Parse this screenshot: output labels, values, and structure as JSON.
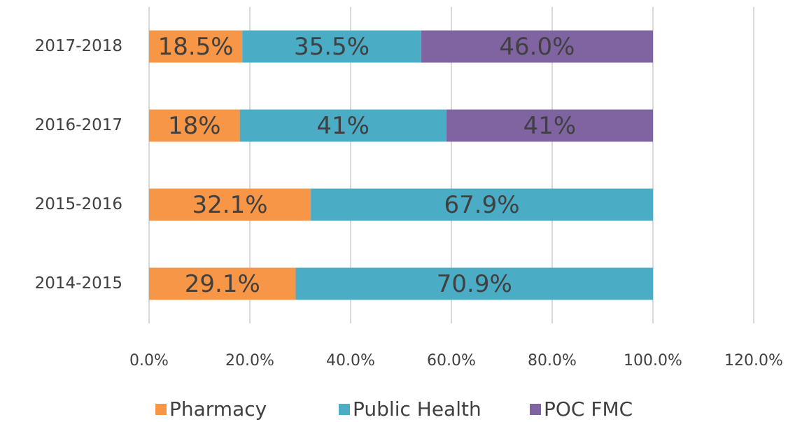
{
  "chart_data": {
    "type": "stacked-barh",
    "categories": [
      "2017-2018",
      "2016-2017",
      "2015-2016",
      "2014-2015"
    ],
    "series": [
      {
        "name": "Pharmacy",
        "color": "#f79646",
        "values": [
          18.5,
          18,
          32.1,
          29.1
        ],
        "value_labels": [
          "18.5%",
          "18%",
          "32.1%",
          "29.1%"
        ]
      },
      {
        "name": "Public Health",
        "color": "#4bacc6",
        "values": [
          35.5,
          41,
          67.9,
          70.9
        ],
        "value_labels": [
          "35.5%",
          "41%",
          "67.9%",
          "70.9%"
        ]
      },
      {
        "name": "POC FMC",
        "color": "#8064a2",
        "values": [
          46.0,
          41,
          null,
          null
        ],
        "value_labels": [
          "46.0%",
          "41%",
          null,
          null
        ]
      }
    ],
    "xlim": [
      0,
      120
    ],
    "xticks": [
      {
        "value": 0,
        "label": "0.0%"
      },
      {
        "value": 20,
        "label": "20.0%"
      },
      {
        "value": 40,
        "label": "40.0%"
      },
      {
        "value": 60,
        "label": "60.0%"
      },
      {
        "value": 80,
        "label": "80.0%"
      },
      {
        "value": 100,
        "label": "100.0%"
      },
      {
        "value": 120,
        "label": "120.0%"
      }
    ],
    "grid": true,
    "legend": "bottom"
  }
}
